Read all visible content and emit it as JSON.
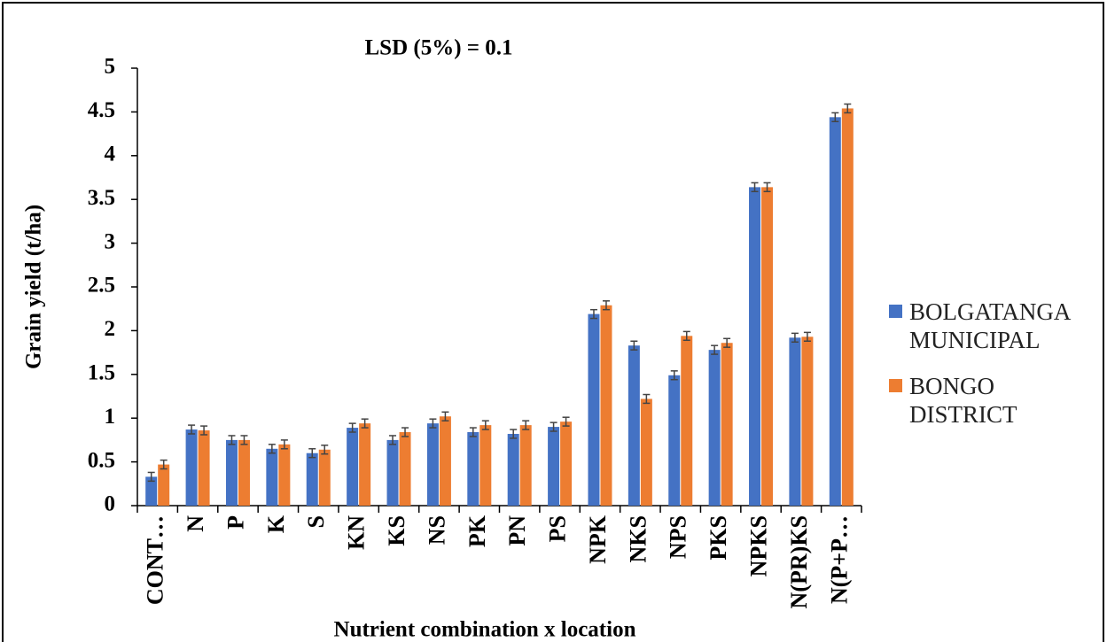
{
  "chart_data": {
    "type": "bar",
    "title": "LSD (5%) = 0.1",
    "x_label": "Nutrient combination  x location",
    "y_label": "Grain  yield (t/ha)",
    "categories": [
      "CONT…",
      "N",
      "P",
      "K",
      "S",
      "KN",
      "KS",
      "NS",
      "PK",
      "PN",
      "PS",
      "NPK",
      "NKS",
      "NPS",
      "PKS",
      "NPKS",
      "N(PR)KS",
      "N(P+P…"
    ],
    "series": [
      {
        "name": "BOLGATANGA MUNICIPAL",
        "color": "#4472c4",
        "values": [
          0.33,
          0.87,
          0.75,
          0.65,
          0.6,
          0.89,
          0.75,
          0.94,
          0.84,
          0.82,
          0.9,
          2.19,
          1.83,
          1.49,
          1.78,
          3.64,
          1.92,
          4.44
        ],
        "errors": [
          0.05,
          0.05,
          0.05,
          0.05,
          0.05,
          0.05,
          0.05,
          0.05,
          0.05,
          0.05,
          0.05,
          0.05,
          0.05,
          0.05,
          0.05,
          0.05,
          0.05,
          0.05
        ]
      },
      {
        "name": "BONGO DISTRICT",
        "color": "#ed7d31",
        "values": [
          0.47,
          0.86,
          0.75,
          0.7,
          0.64,
          0.94,
          0.84,
          1.02,
          0.92,
          0.92,
          0.96,
          2.29,
          1.22,
          1.94,
          1.86,
          3.64,
          1.93,
          4.54
        ],
        "errors": [
          0.05,
          0.05,
          0.05,
          0.05,
          0.05,
          0.05,
          0.05,
          0.05,
          0.05,
          0.05,
          0.05,
          0.05,
          0.05,
          0.05,
          0.05,
          0.05,
          0.05,
          0.05
        ]
      }
    ],
    "ylim": [
      0,
      5
    ],
    "yticks": [
      0,
      0.5,
      1,
      1.5,
      2,
      2.5,
      3,
      3.5,
      4,
      4.5,
      5
    ],
    "grid": false,
    "legend": "right"
  }
}
